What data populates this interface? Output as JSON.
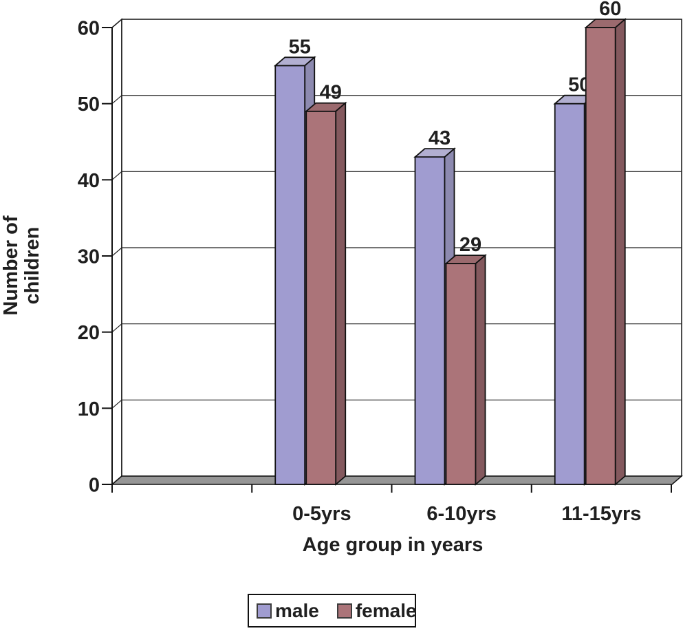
{
  "chart_data": {
    "type": "bar",
    "variant": "3d-column",
    "title": "",
    "categories": [
      "0-5yrs",
      "6-10yrs",
      "11-15yrs"
    ],
    "series": [
      {
        "name": "male",
        "values": [
          55,
          43,
          50
        ],
        "color": "#a09cd0",
        "color_top": "#b2afd1",
        "color_side": "#8d8ab0"
      },
      {
        "name": "female",
        "values": [
          49,
          29,
          60
        ],
        "color": "#ab7479",
        "color_top": "#9b6a6e",
        "color_side": "#84595e"
      }
    ],
    "xlabel": "Age group in years",
    "ylabel_lines": [
      "Number of",
      "children"
    ],
    "ylim": [
      0,
      60
    ],
    "yticks": [
      0,
      10,
      20,
      30,
      40,
      50,
      60
    ],
    "grid": true,
    "show_value_labels": true,
    "legend_position": "bottom",
    "empty_leading_category": true,
    "wall_color": "#ffffff",
    "floor_color": "#969696",
    "outline_color": "#111111",
    "text_color": "#1f1f1f"
  }
}
